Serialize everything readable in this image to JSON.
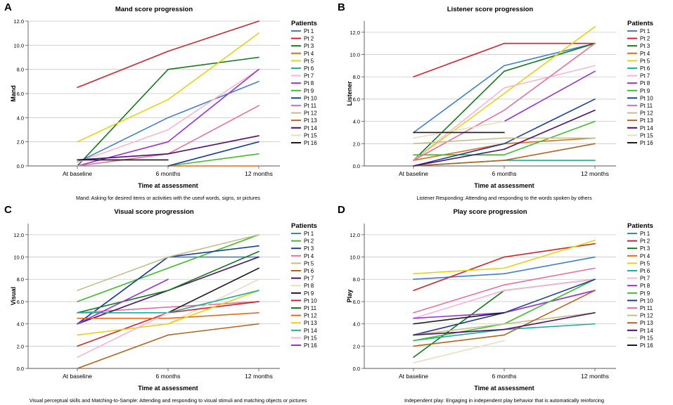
{
  "panels": [
    {
      "letter": "A"
    },
    {
      "letter": "B"
    },
    {
      "letter": "C"
    },
    {
      "letter": "D"
    }
  ],
  "chart_data": [
    {
      "type": "line",
      "title": "Mand score progression",
      "xlabel": "Time at assessment",
      "ylabel": "Mand",
      "caption": "Mand: Asking for desired items or activities with the useof words, signs, or pictures",
      "categories": [
        "At baseline",
        "6 months",
        "12 months"
      ],
      "ylim": [
        0,
        12
      ],
      "yticks": [
        0,
        2,
        4,
        6,
        8,
        10,
        12
      ],
      "ytick_labels": [
        "0.0",
        "2.0",
        "4.0",
        "6.0",
        "8.0",
        "10.0",
        "12.0"
      ],
      "legend_title": "Patients",
      "series": [
        {
          "name": "Pt 1",
          "color": "#3f7fce",
          "values": [
            0.3,
            4,
            7
          ]
        },
        {
          "name": "Pt 2",
          "color": "#d2232a",
          "values": [
            6.5,
            9.5,
            12
          ]
        },
        {
          "name": "Pt 3",
          "color": "#147a1b",
          "values": [
            0,
            8,
            9
          ]
        },
        {
          "name": "Pt 4",
          "color": "#e56a1c",
          "values": [
            null,
            0,
            0
          ]
        },
        {
          "name": "Pt 5",
          "color": "#e5d30f",
          "values": [
            2,
            5.5,
            11
          ]
        },
        {
          "name": "Pt 6",
          "color": "#1ab09c",
          "values": [
            null,
            null,
            null
          ]
        },
        {
          "name": "Pt 7",
          "color": "#f7b6d2",
          "values": [
            0.3,
            3,
            8
          ]
        },
        {
          "name": "Pt 8",
          "color": "#9b30e0",
          "values": [
            0,
            2,
            8
          ]
        },
        {
          "name": "Pt 9",
          "color": "#3cbf29",
          "values": [
            null,
            0,
            1
          ]
        },
        {
          "name": "Pt 10",
          "color": "#1c3f9f",
          "values": [
            null,
            0,
            2
          ]
        },
        {
          "name": "Pt 11",
          "color": "#ec6f99",
          "values": [
            0,
            1,
            5
          ]
        },
        {
          "name": "Pt 12",
          "color": "#c2be8c",
          "values": [
            null,
            null,
            null
          ]
        },
        {
          "name": "Pt 13",
          "color": "#b8621d",
          "values": [
            null,
            null,
            null
          ]
        },
        {
          "name": "Pt 14",
          "color": "#4d0f6e",
          "values": [
            0.5,
            1,
            2.5
          ]
        },
        {
          "name": "Pt 15",
          "color": "#ecdcbe",
          "values": [
            null,
            null,
            null
          ]
        },
        {
          "name": "Pt 16",
          "color": "#1a1a1a",
          "values": [
            0.5,
            0.5,
            null
          ]
        }
      ]
    },
    {
      "type": "line",
      "title": "Listener  score progression",
      "xlabel": "Time at assessment",
      "ylabel": "Listener",
      "caption": "Listener Responding: Attending and responding to the words spoken by others",
      "categories": [
        "At baseline",
        "6 months",
        "12 months"
      ],
      "ylim": [
        0,
        13
      ],
      "yticks": [
        0,
        2,
        4,
        6,
        8,
        10,
        12
      ],
      "ytick_labels": [
        "0.0",
        "2.0",
        "4.0",
        "6.0",
        "8.0",
        "10.0",
        "12.0"
      ],
      "legend_title": "Patients",
      "series": [
        {
          "name": "Pt 1",
          "color": "#3f7fce",
          "values": [
            3,
            9,
            11
          ]
        },
        {
          "name": "Pt 2",
          "color": "#d2232a",
          "values": [
            8,
            11,
            11
          ]
        },
        {
          "name": "Pt 3",
          "color": "#147a1b",
          "values": [
            0.5,
            8.5,
            11
          ]
        },
        {
          "name": "Pt 4",
          "color": "#e56a1c",
          "values": [
            0.5,
            2,
            2.5
          ]
        },
        {
          "name": "Pt 5",
          "color": "#e5d30f",
          "values": [
            0.5,
            6.5,
            12.5
          ]
        },
        {
          "name": "Pt 6",
          "color": "#1ab09c",
          "values": [
            0,
            0.5,
            0.5
          ]
        },
        {
          "name": "Pt 7",
          "color": "#f7b6d2",
          "values": [
            0.5,
            7,
            9
          ]
        },
        {
          "name": "Pt 8",
          "color": "#9b30e0",
          "values": [
            null,
            4,
            8.5
          ]
        },
        {
          "name": "Pt 9",
          "color": "#3cbf29",
          "values": [
            1,
            1,
            4
          ]
        },
        {
          "name": "Pt 10",
          "color": "#1c3f9f",
          "values": [
            0,
            2,
            6
          ]
        },
        {
          "name": "Pt 11",
          "color": "#ec6f99",
          "values": [
            0.5,
            5,
            11
          ]
        },
        {
          "name": "Pt 12",
          "color": "#c2be8c",
          "values": [
            2,
            2.5,
            2.5
          ]
        },
        {
          "name": "Pt 13",
          "color": "#b8621d",
          "values": [
            0,
            0.5,
            2
          ]
        },
        {
          "name": "Pt 14",
          "color": "#4d0f6e",
          "values": [
            0,
            1.5,
            5
          ]
        },
        {
          "name": "Pt 15",
          "color": "#ecdcbe",
          "values": [
            2.5,
            4,
            null
          ]
        },
        {
          "name": "Pt 16",
          "color": "#1a1a1a",
          "values": [
            3,
            3,
            null
          ]
        }
      ]
    },
    {
      "type": "line",
      "title": "Visual score progression",
      "xlabel": "Time at assessment",
      "ylabel": "Visual",
      "caption": "Visual perceptual skills and Matching-to-Sample: Attending and responding to visual stimuli and matching objects or pictures",
      "categories": [
        "At baseline",
        "6 months",
        "12 months"
      ],
      "ylim": [
        0,
        13
      ],
      "yticks": [
        0,
        2,
        4,
        6,
        8,
        10,
        12
      ],
      "ytick_labels": [
        "0.0",
        "2.0",
        "4.0",
        "6.0",
        "8.0",
        "10.0",
        "12.0"
      ],
      "legend_title": "Patients",
      "series": [
        {
          "name": "Pt 1",
          "color": "#3f7fce",
          "values": [
            4,
            10,
            10
          ]
        },
        {
          "name": "Pt 2",
          "color": "#3cbf29",
          "values": [
            6,
            9,
            12
          ]
        },
        {
          "name": "Pt 3",
          "color": "#1c3f9f",
          "values": [
            4,
            10,
            11
          ]
        },
        {
          "name": "Pt 4",
          "color": "#ec6f99",
          "values": [
            5,
            5.5,
            6
          ]
        },
        {
          "name": "Pt 5",
          "color": "#c2be8c",
          "values": [
            7,
            10,
            12
          ]
        },
        {
          "name": "Pt 6",
          "color": "#b8621d",
          "values": [
            0,
            3,
            4
          ]
        },
        {
          "name": "Pt 7",
          "color": "#4d0f6e",
          "values": [
            4,
            7,
            10
          ]
        },
        {
          "name": "Pt 8",
          "color": "#ecdcbe",
          "values": [
            3,
            4,
            8
          ]
        },
        {
          "name": "Pt 9",
          "color": "#1a1a1a",
          "values": [
            null,
            5,
            9
          ]
        },
        {
          "name": "Pt 10",
          "color": "#d2232a",
          "values": [
            2,
            5,
            6
          ]
        },
        {
          "name": "Pt 11",
          "color": "#147a1b",
          "values": [
            5,
            7,
            10.5
          ]
        },
        {
          "name": "Pt 12",
          "color": "#e56a1c",
          "values": [
            4.5,
            4.5,
            5
          ]
        },
        {
          "name": "Pt 13",
          "color": "#e5d30f",
          "values": [
            3,
            4,
            7
          ]
        },
        {
          "name": "Pt 14",
          "color": "#1ab09c",
          "values": [
            5,
            5,
            7
          ]
        },
        {
          "name": "Pt 15",
          "color": "#f7b6d2",
          "values": [
            1,
            5,
            null
          ]
        },
        {
          "name": "Pt 16",
          "color": "#9b30e0",
          "values": [
            4,
            8,
            null
          ]
        }
      ]
    },
    {
      "type": "line",
      "title": "Play score progression",
      "xlabel": "Time at assessment",
      "ylabel": "Play",
      "caption": "Independent play: Engaging in independent play behavior that is automatically reinforcing",
      "categories": [
        "At baseline",
        "6 months",
        "12 months"
      ],
      "ylim": [
        0,
        13
      ],
      "yticks": [
        0,
        2,
        4,
        6,
        8,
        10,
        12
      ],
      "ytick_labels": [
        "0.0",
        "2.0",
        "4.0",
        "6.0",
        "8.0",
        "10.0",
        "12.0"
      ],
      "legend_title": "Patients",
      "series": [
        {
          "name": "Pt 1",
          "color": "#3f7fce",
          "values": [
            8,
            8.5,
            10
          ]
        },
        {
          "name": "Pt 2",
          "color": "#d2232a",
          "values": [
            7,
            10,
            11.2
          ]
        },
        {
          "name": "Pt 3",
          "color": "#147a1b",
          "values": [
            1,
            7,
            8
          ]
        },
        {
          "name": "Pt 4",
          "color": "#e56a1c",
          "values": [
            3,
            5,
            7
          ]
        },
        {
          "name": "Pt 5",
          "color": "#e5d30f",
          "values": [
            8.5,
            9,
            11.5
          ]
        },
        {
          "name": "Pt 6",
          "color": "#1ab09c",
          "values": [
            2.5,
            3.5,
            4
          ]
        },
        {
          "name": "Pt 7",
          "color": "#f7b6d2",
          "values": [
            4.5,
            7,
            8
          ]
        },
        {
          "name": "Pt 8",
          "color": "#9b30e0",
          "values": [
            4.5,
            5,
            7
          ]
        },
        {
          "name": "Pt 9",
          "color": "#3cbf29",
          "values": [
            2.5,
            4,
            8
          ]
        },
        {
          "name": "Pt 10",
          "color": "#1c3f9f",
          "values": [
            3,
            5,
            8
          ]
        },
        {
          "name": "Pt 11",
          "color": "#ec6f99",
          "values": [
            5,
            7.5,
            9
          ]
        },
        {
          "name": "Pt 12",
          "color": "#c2be8c",
          "values": [
            3,
            4,
            5
          ]
        },
        {
          "name": "Pt 13",
          "color": "#b8621d",
          "values": [
            2,
            3,
            7
          ]
        },
        {
          "name": "Pt 14",
          "color": "#4d0f6e",
          "values": [
            3,
            3.5,
            5
          ]
        },
        {
          "name": "Pt 15",
          "color": "#ecdcbe",
          "values": [
            0.5,
            2.5,
            null
          ]
        },
        {
          "name": "Pt 16",
          "color": "#1a1a1a",
          "values": [
            4,
            5,
            null
          ]
        }
      ]
    }
  ]
}
